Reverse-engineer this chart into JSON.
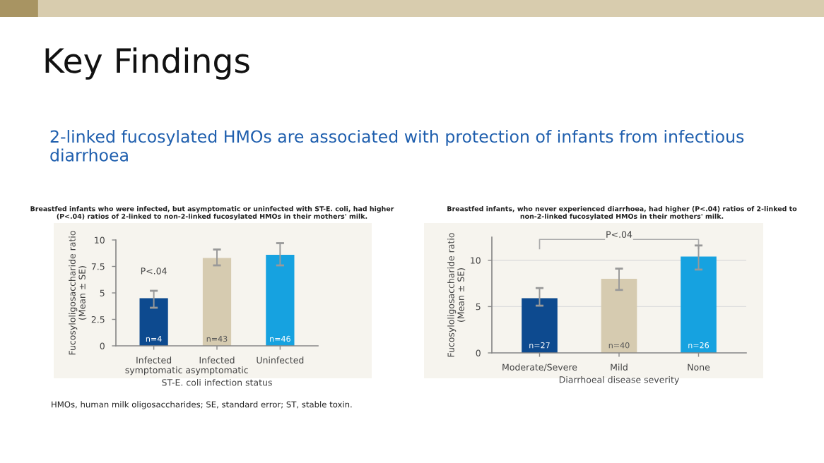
{
  "chart_data": [
    {
      "type": "bar",
      "title": "Breastfed infants who were infected, but asymptomatic or uninfected with ST-E. coli, had higher\n(P<.04) ratios of 2-linked to non-2-linked fucosylated HMOs in their mothers' milk.",
      "categories": [
        "Infected\nsymptomatic",
        "Infected\nasymptomatic",
        "Uninfected"
      ],
      "values": [
        4.5,
        8.3,
        8.6
      ],
      "colors": [
        "#0d4a8f",
        "#d6cbb0",
        "#16a2e0"
      ],
      "errors": [
        [
          3.6,
          5.2
        ],
        [
          7.6,
          9.1
        ],
        [
          7.6,
          9.7
        ]
      ],
      "xlabel": "ST-E. coli infection status",
      "ylabel": "Fucosyloligosaccharide ratio\n(Mean ± SE)",
      "ylim": [
        0,
        10
      ],
      "yticks": [
        0,
        2.5,
        5,
        7.5,
        10
      ],
      "grid": false,
      "annotations": [
        "n=4",
        "n=43",
        "n=46",
        "P<.04",
        "Key Findings",
        "2-linked fucosylated HMOs are associated with protection of infants from infectious diarrhoea",
        "HMOs, human milk oligosaccharides; SE, standard error; ST, stable toxin."
      ]
    },
    {
      "type": "bar",
      "title": "Breastfed infants, who never experienced diarrhoea, had higher (P<.04) ratios of 2-linked to\nnon-2-linked fucosylated HMOs in their mothers' milk.",
      "categories": [
        "Moderate/Severe",
        "Mild",
        "None"
      ],
      "values": [
        5.9,
        8.0,
        10.4
      ],
      "colors": [
        "#0d4a8f",
        "#d6cbb0",
        "#16a2e0"
      ],
      "errors": [
        [
          5.1,
          7.0
        ],
        [
          6.8,
          9.1
        ],
        [
          9.0,
          11.6
        ]
      ],
      "xlabel": "Diarrhoeal disease severity",
      "ylabel": "Fucosyloligosaccharide ratio\n(Mean ± SE)",
      "ylim": [
        0,
        12.5
      ],
      "yticks": [
        0,
        5,
        10
      ],
      "grid": "y",
      "annotations": [
        "n=27",
        "n=40",
        "n=26",
        "P<.04"
      ]
    }
  ]
}
